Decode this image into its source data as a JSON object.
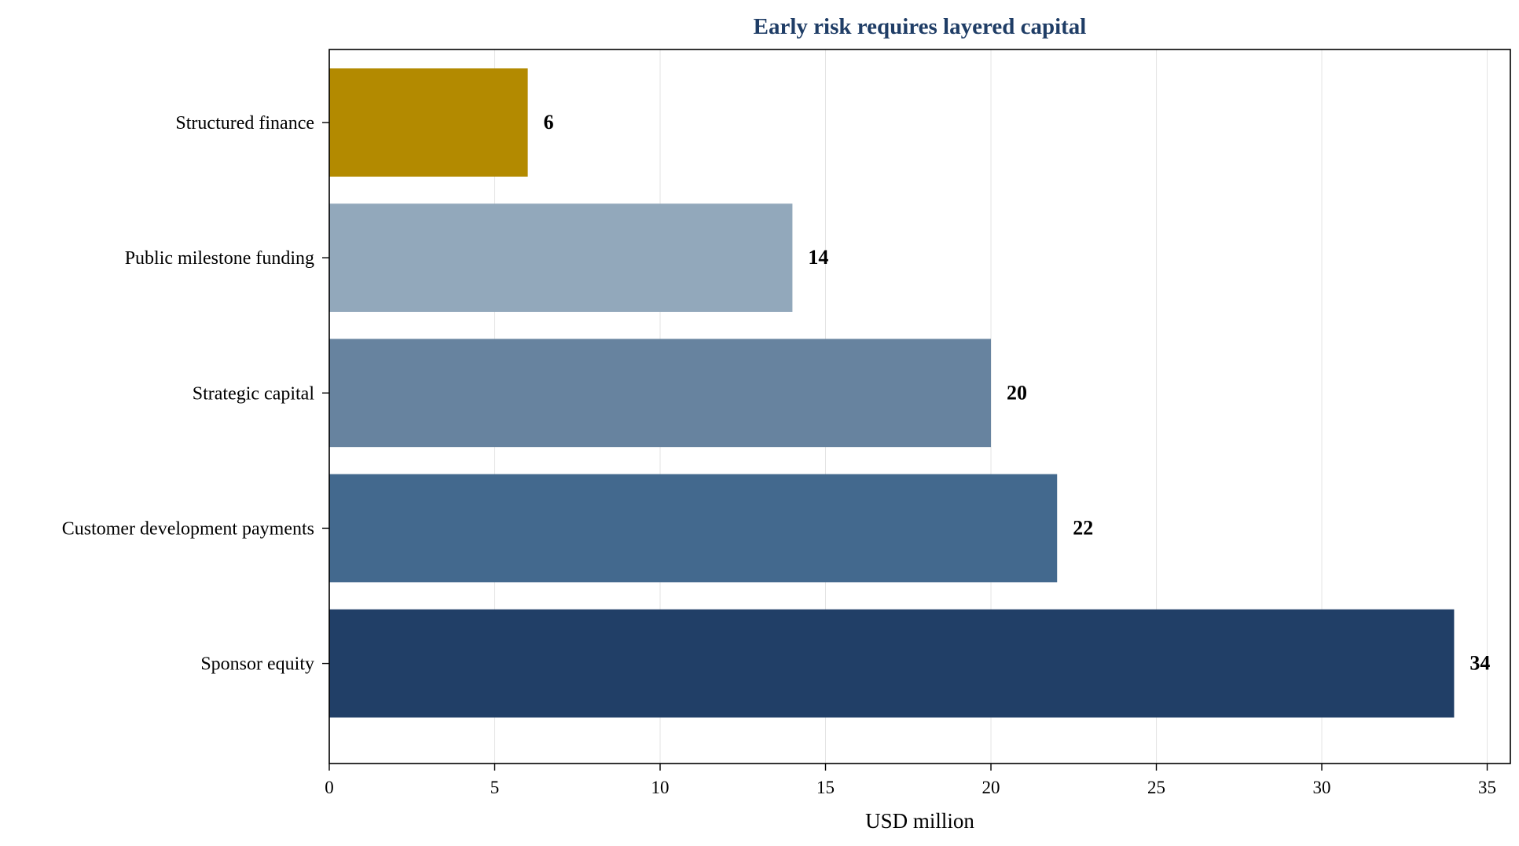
{
  "chart_data": {
    "type": "bar",
    "orientation": "horizontal",
    "title": "Early risk requires layered capital",
    "xlabel": "USD million",
    "ylabel": "",
    "xlim": [
      0,
      35.7
    ],
    "xticks": [
      0,
      5,
      10,
      15,
      20,
      25,
      30,
      35
    ],
    "grid": "vertical",
    "categories": [
      "Structured finance",
      "Public milestone funding",
      "Strategic capital",
      "Customer development payments",
      "Sponsor equity"
    ],
    "values": [
      6,
      14,
      20,
      22,
      34
    ],
    "value_labels": [
      "6",
      "14",
      "20",
      "22",
      "34"
    ],
    "colors": [
      "#b38a00",
      "#92a8bb",
      "#67839f",
      "#43698e",
      "#213f67"
    ],
    "title_color": "#1f3d66"
  }
}
